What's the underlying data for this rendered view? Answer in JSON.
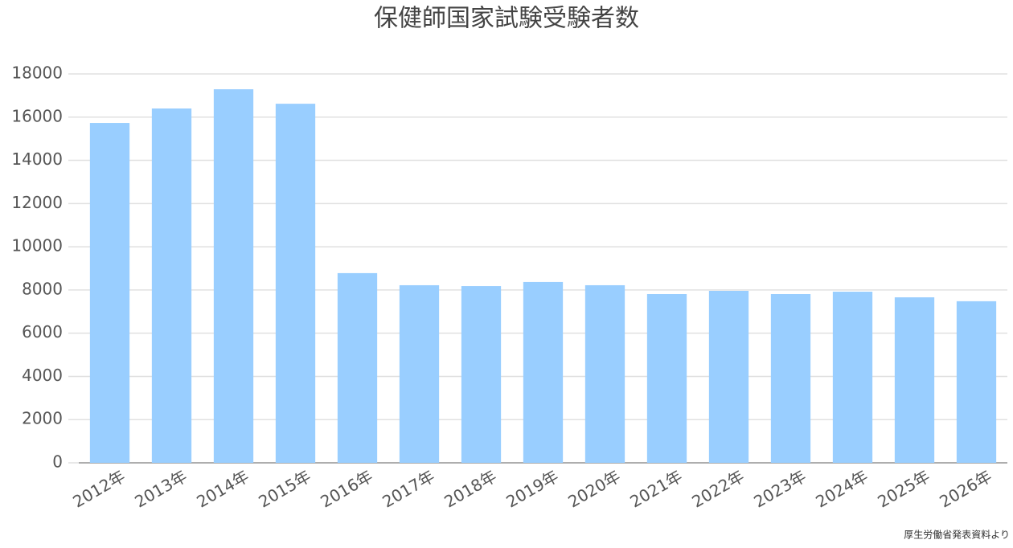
{
  "chart_data": {
    "type": "bar",
    "title": "保健師国家試験受験者数",
    "categories": [
      "2012年",
      "2013年",
      "2014年",
      "2015年",
      "2016年",
      "2017年",
      "2018年",
      "2019年",
      "2020年",
      "2021年",
      "2022年",
      "2023年",
      "2024年",
      "2025年",
      "2026年"
    ],
    "values": [
      15730,
      16400,
      17290,
      16620,
      8780,
      8220,
      8180,
      8370,
      8220,
      7810,
      7960,
      7810,
      7920,
      7660,
      7480
    ],
    "color": "#99ceff",
    "ylim": [
      0,
      18000
    ],
    "yticks": [
      0,
      2000,
      4000,
      6000,
      8000,
      10000,
      12000,
      14000,
      16000,
      18000
    ],
    "grid": true,
    "source": "厚生労働省発表資料より"
  }
}
